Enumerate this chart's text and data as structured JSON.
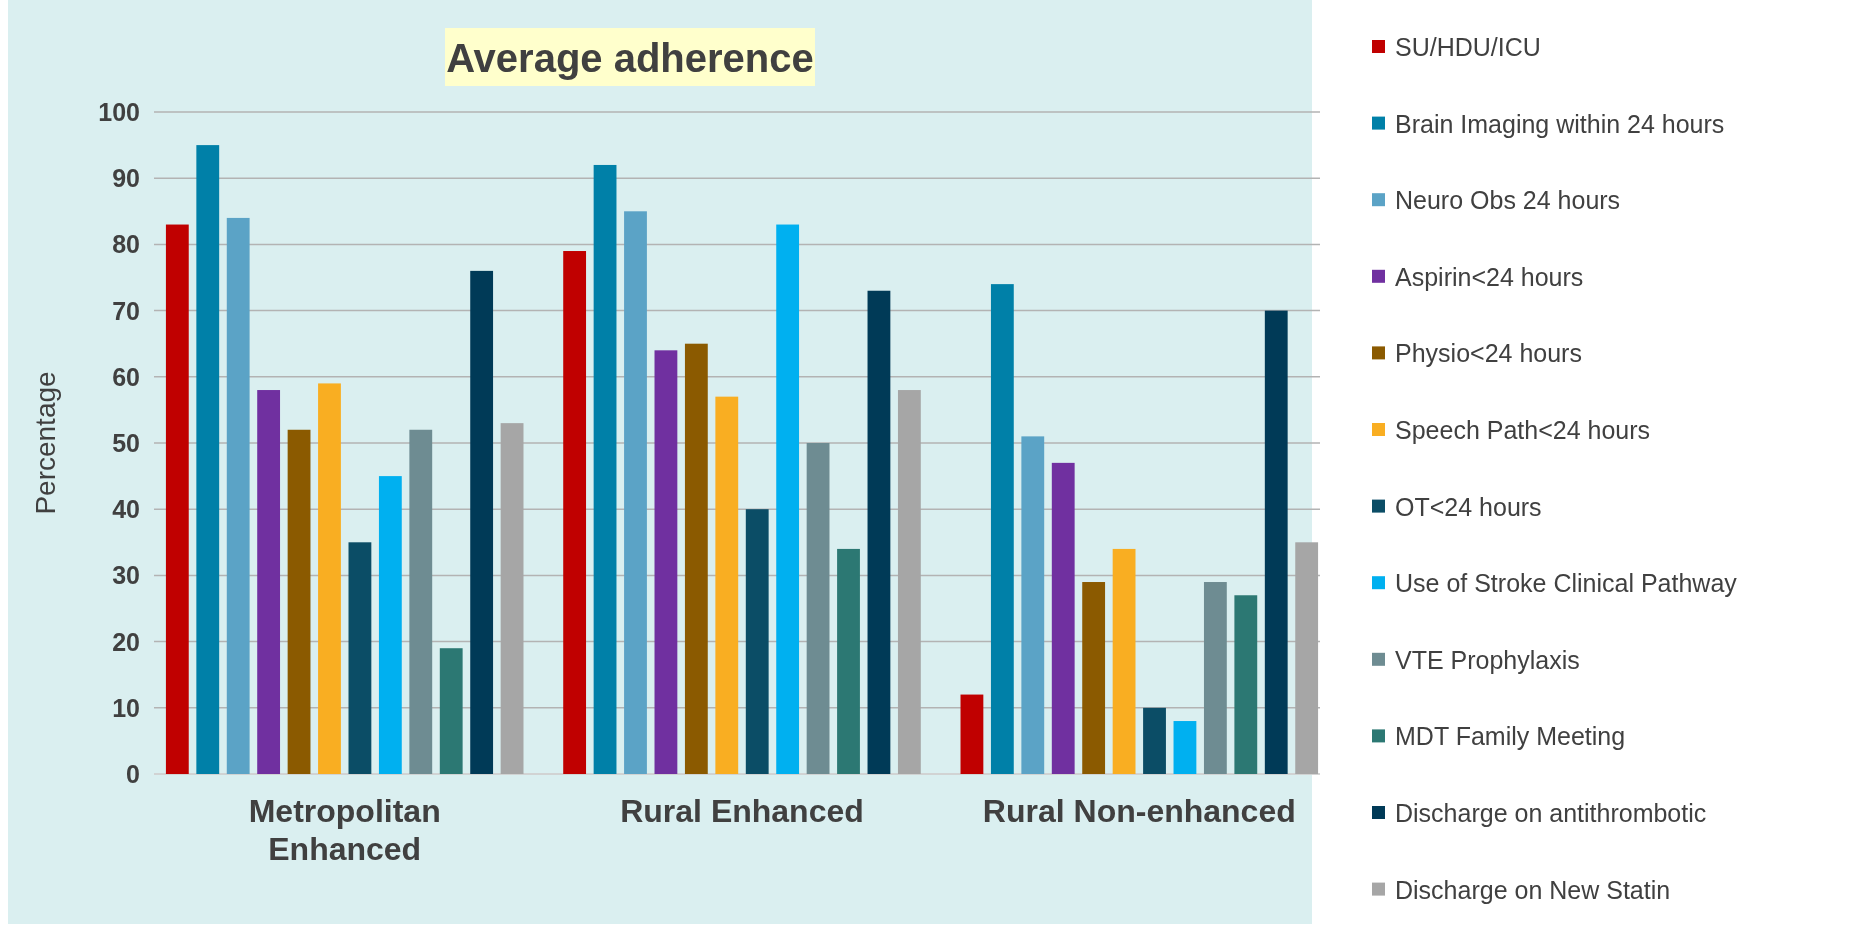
{
  "chart_data": {
    "type": "bar",
    "title": "Average adherence",
    "ylabel": "Percentage",
    "categories": [
      "Metropolitan Enhanced",
      "Rural Enhanced",
      "Rural Non-enhanced"
    ],
    "series": [
      {
        "name": "SU/HDU/ICU",
        "color": "#c00000",
        "values": [
          83,
          79,
          12
        ]
      },
      {
        "name": "Brain Imaging within 24 hours",
        "color": "#0080a8",
        "values": [
          95,
          92,
          74
        ]
      },
      {
        "name": "Neuro Obs 24 hours",
        "color": "#5ba3c6",
        "values": [
          84,
          85,
          51
        ]
      },
      {
        "name": "Aspirin<24 hours",
        "color": "#7030a0",
        "values": [
          58,
          64,
          47
        ]
      },
      {
        "name": "Physio<24 hours",
        "color": "#8b5a00",
        "values": [
          52,
          65,
          29
        ]
      },
      {
        "name": "Speech Path<24 hours",
        "color": "#f9ae22",
        "values": [
          59,
          57,
          34
        ]
      },
      {
        "name": "OT<24 hours",
        "color": "#0b4d66",
        "values": [
          35,
          40,
          10
        ]
      },
      {
        "name": "Use of Stroke Clinical Pathway",
        "color": "#00b0f0",
        "values": [
          45,
          83,
          8
        ]
      },
      {
        "name": "VTE Prophylaxis",
        "color": "#6e8c92",
        "values": [
          52,
          50,
          29
        ]
      },
      {
        "name": "MDT Family Meeting",
        "color": "#2c7873",
        "values": [
          19,
          34,
          27
        ]
      },
      {
        "name": "Discharge on antithrombotic",
        "color": "#003a57",
        "values": [
          76,
          73,
          70
        ]
      },
      {
        "name": "Discharge on New Statin",
        "color": "#a6a6a6",
        "values": [
          53,
          58,
          35
        ]
      }
    ],
    "ylim": [
      0,
      100
    ],
    "yticks": [
      0,
      10,
      20,
      30,
      40,
      50,
      60,
      70,
      80,
      90,
      100
    ],
    "grid": "y",
    "legend": "right"
  }
}
